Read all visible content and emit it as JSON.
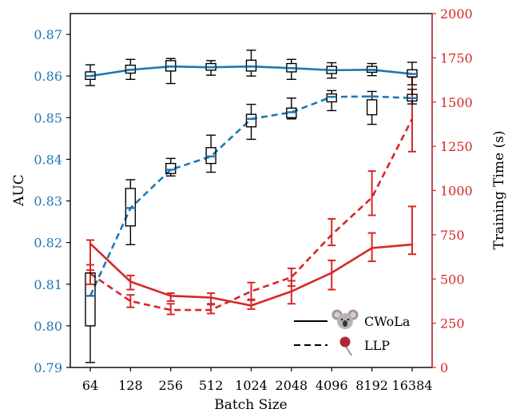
{
  "chart_data": {
    "type": "line",
    "xlabel": "Batch Size",
    "ylabel_left": "AUC",
    "ylabel_right": "Training Time (s)",
    "categories": [
      "64",
      "128",
      "256",
      "512",
      "1024",
      "2048",
      "4096",
      "8192",
      "16384"
    ],
    "ylim_left": [
      0.79,
      0.875
    ],
    "yticks_left": [
      "0.79",
      "0.80",
      "0.81",
      "0.82",
      "0.83",
      "0.84",
      "0.85",
      "0.86",
      "0.87"
    ],
    "ylim_right": [
      0,
      2000
    ],
    "yticks_right": [
      "0",
      "250",
      "500",
      "750",
      "1000",
      "1250",
      "1500",
      "1750",
      "2000"
    ],
    "legend": [
      {
        "label": "CWoLa",
        "linestyle": "solid",
        "icon": "koala-icon"
      },
      {
        "label": "LLP",
        "linestyle": "dashed",
        "icon": "lollipop-icon"
      }
    ],
    "legend_position": "lower-right",
    "auc_series": [
      {
        "method": "CWoLa",
        "linestyle": "solid",
        "color": "#1f77b4",
        "median": [
          0.86,
          0.8615,
          0.8623,
          0.8621,
          0.8623,
          0.8619,
          0.8614,
          0.8615,
          0.8605
        ],
        "box_q1": [
          0.8592,
          0.8607,
          0.8612,
          0.8614,
          0.8612,
          0.861,
          0.8606,
          0.8609,
          0.8598
        ],
        "box_q3": [
          0.861,
          0.8626,
          0.8637,
          0.863,
          0.8638,
          0.863,
          0.8623,
          0.8623,
          0.8615
        ],
        "whisker_low": [
          0.8577,
          0.8592,
          0.8582,
          0.8602,
          0.86,
          0.8592,
          0.8595,
          0.8601,
          0.8579
        ],
        "whisker_high": [
          0.8627,
          0.864,
          0.8642,
          0.8637,
          0.8662,
          0.864,
          0.8632,
          0.863,
          0.8633
        ]
      },
      {
        "method": "LLP",
        "linestyle": "dashed",
        "color": "#1f77b4",
        "median": [
          0.8072,
          0.8283,
          0.8375,
          0.8407,
          0.8497,
          0.8513,
          0.855,
          0.8551,
          0.8547
        ],
        "box_q1": [
          0.8,
          0.824,
          0.8366,
          0.839,
          0.8478,
          0.85,
          0.8538,
          0.8507,
          0.854
        ],
        "box_q3": [
          0.8127,
          0.833,
          0.839,
          0.8428,
          0.8508,
          0.8523,
          0.8557,
          0.8543,
          0.8556
        ],
        "whisker_low": [
          0.7912,
          0.8195,
          0.836,
          0.8369,
          0.8448,
          0.8497,
          0.8517,
          0.8484,
          0.8533
        ],
        "whisker_high": [
          0.8127,
          0.8351,
          0.8402,
          0.8458,
          0.8532,
          0.8547,
          0.8565,
          0.8563,
          0.8568
        ]
      }
    ],
    "time_series": [
      {
        "method": "CWoLa",
        "linestyle": "solid",
        "color": "#d62728",
        "values": [
          700,
          485,
          405,
          395,
          350,
          430,
          535,
          675,
          695
        ],
        "error_low": [
          550,
          440,
          375,
          360,
          330,
          360,
          440,
          600,
          640
        ],
        "error_high": [
          720,
          520,
          420,
          420,
          385,
          490,
          605,
          760,
          910
        ]
      },
      {
        "method": "LLP",
        "linestyle": "dashed",
        "color": "#d62728",
        "values": [
          530,
          375,
          325,
          325,
          430,
          510,
          750,
          960,
          1405
        ],
        "error_low": [
          470,
          340,
          300,
          305,
          380,
          460,
          690,
          860,
          1220
        ],
        "error_high": [
          580,
          410,
          360,
          355,
          480,
          560,
          840,
          1110,
          1640
        ]
      }
    ]
  }
}
